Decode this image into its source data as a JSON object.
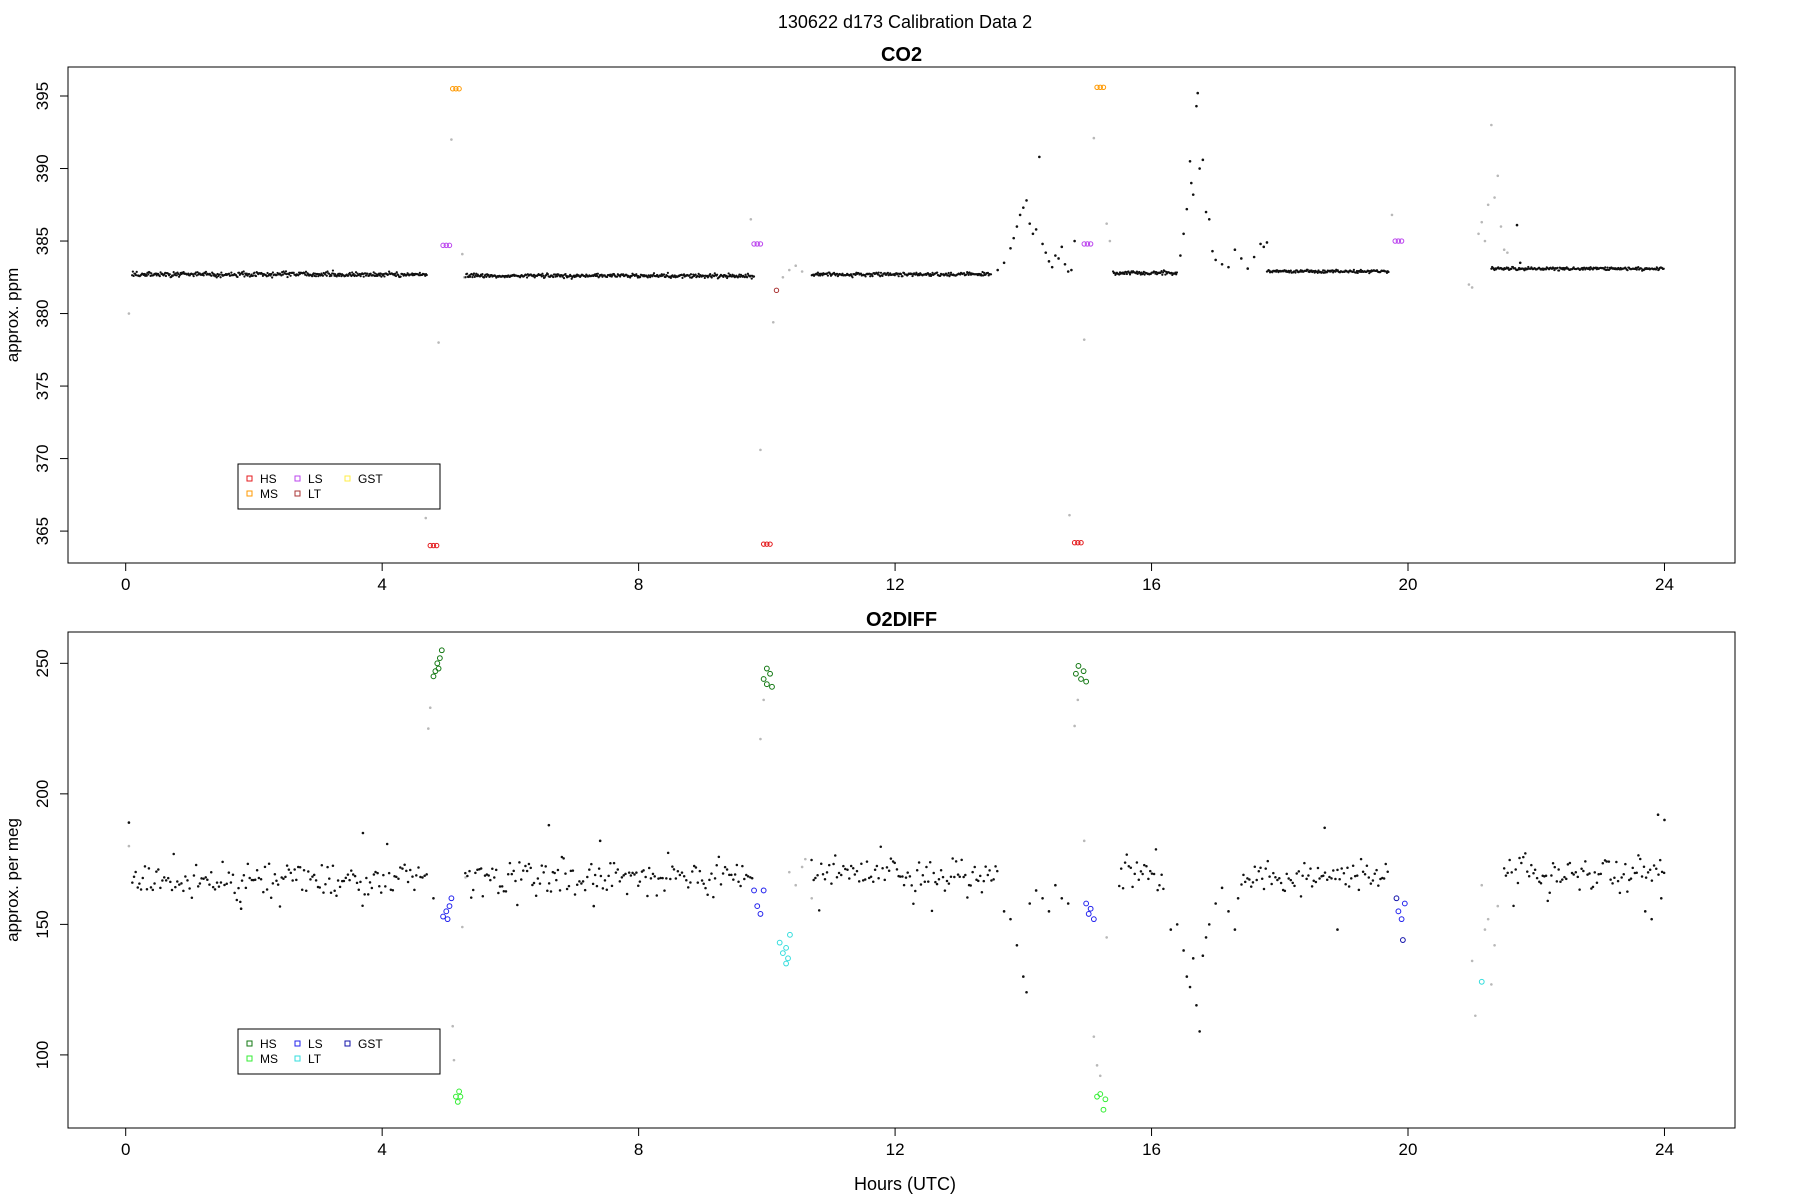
{
  "suptitle": "130622   d173   Calibration Data 2",
  "xlabel": "Hours (UTC)",
  "chart_data": [
    {
      "type": "scatter",
      "title": "CO2",
      "ylabel": "approx. ppm",
      "xlim": [
        -0.9,
        25.1
      ],
      "ylim": [
        362.8,
        397.0
      ],
      "xticks": [
        0,
        4,
        8,
        12,
        16,
        20,
        24
      ],
      "yticks": [
        365,
        370,
        375,
        380,
        385,
        390,
        395
      ],
      "legend": {
        "placement": "bottom-left",
        "rows": [
          [
            "HS",
            "LS",
            "GST"
          ],
          [
            "MS",
            "LT"
          ]
        ],
        "colors": {
          "HS": "#e41a1c",
          "MS": "#ff9900",
          "LS": "#bb44ee",
          "LT": "#aa3333",
          "GST": "#ffee44"
        }
      },
      "series": [
        {
          "name": "HS",
          "color": "#e41a1c",
          "points": [
            [
              4.75,
              364.0
            ],
            [
              4.8,
              364.0
            ],
            [
              4.85,
              364.0
            ],
            [
              9.95,
              364.1
            ],
            [
              10.0,
              364.1
            ],
            [
              10.05,
              364.1
            ],
            [
              14.8,
              364.2
            ],
            [
              14.85,
              364.2
            ],
            [
              14.9,
              364.2
            ]
          ]
        },
        {
          "name": "MS",
          "color": "#ff9900",
          "points": [
            [
              5.1,
              395.5
            ],
            [
              5.15,
              395.5
            ],
            [
              5.2,
              395.5
            ],
            [
              15.15,
              395.6
            ],
            [
              15.2,
              395.6
            ],
            [
              15.25,
              395.6
            ]
          ]
        },
        {
          "name": "LS",
          "color": "#bb44ee",
          "points": [
            [
              4.95,
              384.7
            ],
            [
              5.0,
              384.7
            ],
            [
              5.05,
              384.7
            ],
            [
              9.8,
              384.8
            ],
            [
              9.85,
              384.8
            ],
            [
              9.9,
              384.8
            ],
            [
              14.95,
              384.8
            ],
            [
              15.0,
              384.8
            ],
            [
              15.05,
              384.8
            ],
            [
              19.8,
              385.0
            ],
            [
              19.85,
              385.0
            ],
            [
              19.9,
              385.0
            ]
          ]
        },
        {
          "name": "LT",
          "color": "#aa3333",
          "points": [
            [
              10.15,
              381.6
            ]
          ]
        },
        {
          "name": "GST",
          "color": "#ffee44",
          "points": []
        }
      ],
      "ambient": {
        "color": "#111111",
        "segments": [
          {
            "x": [
              0.1,
              4.7
            ],
            "y": 382.7,
            "noise": 0.12
          },
          {
            "x": [
              5.3,
              9.8
            ],
            "y": 382.6,
            "noise": 0.1
          },
          {
            "x": [
              10.7,
              13.5
            ],
            "y": 382.7,
            "noise": 0.1
          },
          {
            "x": [
              15.4,
              16.4
            ],
            "y": 382.8,
            "noise": 0.1
          },
          {
            "x": [
              17.8,
              19.7
            ],
            "y": 382.9,
            "noise": 0.08
          },
          {
            "x": [
              21.3,
              24.0
            ],
            "y": 383.1,
            "noise": 0.08
          }
        ],
        "scatter": [
          [
            13.6,
            383.0
          ],
          [
            13.7,
            383.5
          ],
          [
            13.8,
            384.5
          ],
          [
            13.85,
            385.2
          ],
          [
            13.9,
            386.0
          ],
          [
            13.95,
            386.8
          ],
          [
            14.0,
            387.3
          ],
          [
            14.05,
            387.8
          ],
          [
            14.1,
            386.2
          ],
          [
            14.15,
            385.5
          ],
          [
            14.2,
            385.8
          ],
          [
            14.25,
            390.8
          ],
          [
            14.3,
            384.8
          ],
          [
            14.35,
            384.2
          ],
          [
            14.4,
            383.6
          ],
          [
            14.45,
            383.2
          ],
          [
            14.5,
            384.0
          ],
          [
            14.55,
            383.8
          ],
          [
            14.6,
            384.6
          ],
          [
            14.65,
            383.4
          ],
          [
            14.7,
            382.9
          ],
          [
            14.75,
            383.0
          ],
          [
            14.8,
            385.0
          ],
          [
            16.45,
            384.0
          ],
          [
            16.5,
            385.5
          ],
          [
            16.55,
            387.2
          ],
          [
            16.6,
            390.5
          ],
          [
            16.62,
            389.0
          ],
          [
            16.65,
            388.2
          ],
          [
            16.7,
            394.3
          ],
          [
            16.72,
            395.2
          ],
          [
            16.75,
            390.0
          ],
          [
            16.8,
            390.6
          ],
          [
            16.85,
            387.0
          ],
          [
            16.9,
            386.5
          ],
          [
            16.95,
            384.3
          ],
          [
            17.0,
            383.7
          ],
          [
            17.1,
            383.4
          ],
          [
            17.2,
            383.2
          ],
          [
            17.3,
            384.4
          ],
          [
            17.4,
            383.8
          ],
          [
            17.5,
            383.1
          ],
          [
            17.6,
            383.9
          ],
          [
            17.7,
            384.8
          ],
          [
            17.75,
            384.6
          ],
          [
            17.8,
            384.9
          ],
          [
            21.7,
            386.1
          ],
          [
            21.75,
            383.5
          ]
        ]
      },
      "transitions": {
        "color": "#b8b8b8",
        "points": [
          [
            0.05,
            380.0
          ],
          [
            4.68,
            365.9
          ],
          [
            4.88,
            378.0
          ],
          [
            5.08,
            392.0
          ],
          [
            5.25,
            384.1
          ],
          [
            5.28,
            382.5
          ],
          [
            9.75,
            386.5
          ],
          [
            9.9,
            370.6
          ],
          [
            10.1,
            379.4
          ],
          [
            10.25,
            382.5
          ],
          [
            10.35,
            383.0
          ],
          [
            10.45,
            383.3
          ],
          [
            10.55,
            382.9
          ],
          [
            14.72,
            366.1
          ],
          [
            14.95,
            378.2
          ],
          [
            15.1,
            392.1
          ],
          [
            15.3,
            386.2
          ],
          [
            15.35,
            385.0
          ],
          [
            19.75,
            386.8
          ],
          [
            20.95,
            382.0
          ],
          [
            21.0,
            381.8
          ],
          [
            21.1,
            385.5
          ],
          [
            21.15,
            386.3
          ],
          [
            21.2,
            385.0
          ],
          [
            21.25,
            387.5
          ],
          [
            21.3,
            393.0
          ],
          [
            21.35,
            388.0
          ],
          [
            21.4,
            389.5
          ],
          [
            21.45,
            386.0
          ],
          [
            21.5,
            384.4
          ],
          [
            21.55,
            384.2
          ]
        ]
      }
    },
    {
      "type": "scatter",
      "title": "O2DIFF",
      "ylabel": "approx. per meg",
      "xlim": [
        -0.9,
        25.1
      ],
      "ylim": [
        72,
        262
      ],
      "xticks": [
        0,
        4,
        8,
        12,
        16,
        20,
        24
      ],
      "yticks": [
        100,
        150,
        200,
        250
      ],
      "legend": {
        "placement": "bottom-left",
        "rows": [
          [
            "HS",
            "LS",
            "GST"
          ],
          [
            "MS",
            "LT"
          ]
        ],
        "colors": {
          "HS": "#117711",
          "MS": "#33ee33",
          "LS": "#2222ee",
          "LT": "#33dddd",
          "GST": "#1111aa"
        }
      },
      "series": [
        {
          "name": "HS",
          "color": "#117711",
          "points": [
            [
              4.8,
              245
            ],
            [
              4.83,
              247
            ],
            [
              4.86,
              250
            ],
            [
              4.9,
              252
            ],
            [
              4.93,
              255
            ],
            [
              4.88,
              248
            ],
            [
              9.95,
              244
            ],
            [
              10.0,
              242
            ],
            [
              10.05,
              246
            ],
            [
              10.08,
              241
            ],
            [
              10.0,
              248
            ],
            [
              14.82,
              246
            ],
            [
              14.86,
              249
            ],
            [
              14.9,
              244
            ],
            [
              14.94,
              247
            ],
            [
              14.98,
              243
            ]
          ]
        },
        {
          "name": "MS",
          "color": "#33ee33",
          "points": [
            [
              5.15,
              84
            ],
            [
              5.18,
              82
            ],
            [
              5.2,
              86
            ],
            [
              5.22,
              84
            ],
            [
              15.15,
              84
            ],
            [
              15.2,
              85
            ],
            [
              15.25,
              79
            ],
            [
              15.28,
              83
            ]
          ]
        },
        {
          "name": "LS",
          "color": "#2222ee",
          "points": [
            [
              4.95,
              153
            ],
            [
              5.0,
              155
            ],
            [
              5.05,
              157
            ],
            [
              5.08,
              160
            ],
            [
              5.02,
              152
            ],
            [
              9.8,
              163
            ],
            [
              9.85,
              157
            ],
            [
              9.9,
              154
            ],
            [
              9.95,
              163
            ],
            [
              14.98,
              158
            ],
            [
              15.02,
              154
            ],
            [
              15.05,
              156
            ],
            [
              15.1,
              152
            ],
            [
              19.85,
              155
            ],
            [
              19.9,
              152
            ],
            [
              19.95,
              158
            ]
          ]
        },
        {
          "name": "LT",
          "color": "#33dddd",
          "points": [
            [
              10.2,
              143
            ],
            [
              10.25,
              139
            ],
            [
              10.3,
              135
            ],
            [
              10.33,
              137
            ],
            [
              10.36,
              146
            ],
            [
              10.3,
              141
            ],
            [
              21.15,
              128
            ]
          ]
        },
        {
          "name": "GST",
          "color": "#1111aa",
          "points": [
            [
              19.82,
              160
            ],
            [
              19.92,
              144
            ]
          ]
        }
      ],
      "ambient": {
        "color": "#111111",
        "segments": [
          {
            "x": [
              0.1,
              4.7
            ],
            "y": 167,
            "noise": 4.5
          },
          {
            "x": [
              5.3,
              9.8
            ],
            "y": 168,
            "noise": 4.5
          },
          {
            "x": [
              10.7,
              13.6
            ],
            "y": 169,
            "noise": 4.5
          },
          {
            "x": [
              15.5,
              16.2
            ],
            "y": 168,
            "noise": 6
          },
          {
            "x": [
              17.4,
              19.7
            ],
            "y": 168,
            "noise": 4.5
          },
          {
            "x": [
              21.5,
              24.0
            ],
            "y": 170,
            "noise": 4.5
          }
        ],
        "scatter": [
          [
            0.05,
            189
          ],
          [
            1.8,
            156
          ],
          [
            3.7,
            185
          ],
          [
            4.8,
            160
          ],
          [
            6.6,
            188
          ],
          [
            7.4,
            182
          ],
          [
            7.3,
            157
          ],
          [
            13.9,
            142
          ],
          [
            14.0,
            130
          ],
          [
            14.05,
            124
          ],
          [
            13.7,
            155
          ],
          [
            13.8,
            152
          ],
          [
            14.1,
            158
          ],
          [
            14.2,
            163
          ],
          [
            14.3,
            160
          ],
          [
            14.4,
            155
          ],
          [
            14.5,
            165
          ],
          [
            14.6,
            160
          ],
          [
            14.7,
            158
          ],
          [
            16.3,
            148
          ],
          [
            16.4,
            150
          ],
          [
            16.5,
            140
          ],
          [
            16.55,
            130
          ],
          [
            16.6,
            126
          ],
          [
            16.65,
            137
          ],
          [
            16.7,
            119
          ],
          [
            16.75,
            109
          ],
          [
            16.8,
            138
          ],
          [
            16.85,
            145
          ],
          [
            16.9,
            150
          ],
          [
            17.0,
            158
          ],
          [
            17.1,
            164
          ],
          [
            17.2,
            155
          ],
          [
            17.3,
            148
          ],
          [
            17.35,
            160
          ],
          [
            18.7,
            187
          ],
          [
            18.9,
            148
          ],
          [
            23.9,
            192
          ],
          [
            24.0,
            190
          ],
          [
            23.95,
            160
          ],
          [
            23.7,
            155
          ],
          [
            23.8,
            152
          ]
        ]
      },
      "transitions": {
        "color": "#b8b8b8",
        "points": [
          [
            0.05,
            180
          ],
          [
            4.72,
            225
          ],
          [
            4.75,
            233
          ],
          [
            5.1,
            111
          ],
          [
            5.12,
            98
          ],
          [
            5.25,
            149
          ],
          [
            5.3,
            168
          ],
          [
            9.9,
            221
          ],
          [
            9.95,
            236
          ],
          [
            10.35,
            170
          ],
          [
            10.45,
            165
          ],
          [
            10.55,
            172
          ],
          [
            10.6,
            175
          ],
          [
            10.7,
            160
          ],
          [
            14.8,
            226
          ],
          [
            14.85,
            236
          ],
          [
            14.95,
            182
          ],
          [
            15.1,
            107
          ],
          [
            15.15,
            96
          ],
          [
            15.2,
            92
          ],
          [
            15.3,
            145
          ],
          [
            21.0,
            136
          ],
          [
            21.05,
            115
          ],
          [
            21.15,
            165
          ],
          [
            21.2,
            148
          ],
          [
            21.25,
            152
          ],
          [
            21.3,
            127
          ],
          [
            21.35,
            142
          ],
          [
            21.4,
            157
          ]
        ]
      }
    }
  ]
}
